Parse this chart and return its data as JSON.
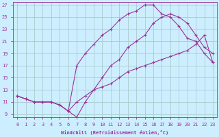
{
  "xlabel": "Windchill (Refroidissement éolien,°C)",
  "bg_color": "#cceeff",
  "grid_color": "#aacccc",
  "line_color": "#993399",
  "xlim": [
    -0.5,
    23.5
  ],
  "ylim": [
    8.5,
    27.5
  ],
  "xticks": [
    0,
    1,
    2,
    3,
    4,
    5,
    6,
    7,
    8,
    9,
    10,
    11,
    12,
    13,
    14,
    15,
    16,
    17,
    18,
    19,
    20,
    21,
    22,
    23
  ],
  "yticks": [
    9,
    11,
    13,
    15,
    17,
    19,
    21,
    23,
    25,
    27
  ],
  "line1_x": [
    0,
    1,
    2,
    3,
    4,
    5,
    6,
    7,
    8,
    9,
    10,
    11,
    12,
    13,
    14,
    15,
    16,
    17,
    18,
    19,
    20,
    21,
    22,
    23
  ],
  "line1_y": [
    12,
    11.5,
    11,
    11,
    11,
    10.5,
    9.5,
    8.5,
    11,
    13,
    15,
    17,
    18,
    20,
    21,
    22,
    24,
    25,
    25.5,
    25,
    24,
    22,
    20,
    19
  ],
  "line2_x": [
    0,
    1,
    2,
    3,
    4,
    5,
    6,
    7,
    8,
    9,
    10,
    11,
    12,
    13,
    14,
    15,
    16,
    17,
    18,
    19,
    20,
    21,
    22,
    23
  ],
  "line2_y": [
    12,
    11.5,
    11,
    11,
    11,
    10.5,
    9.5,
    17,
    19,
    20.5,
    22,
    23,
    24.5,
    25.5,
    26,
    27,
    27,
    25.5,
    25,
    23.5,
    21.5,
    21,
    19,
    17.5
  ],
  "line3_x": [
    0,
    1,
    2,
    3,
    4,
    5,
    6,
    7,
    8,
    9,
    10,
    11,
    12,
    13,
    14,
    15,
    16,
    17,
    18,
    19,
    20,
    21,
    22,
    23
  ],
  "line3_y": [
    12,
    11.5,
    11,
    11,
    11,
    10.5,
    9.5,
    11,
    12,
    13,
    13.5,
    14,
    15,
    16,
    16.5,
    17,
    17.5,
    18,
    18.5,
    19,
    19.5,
    20.5,
    22,
    17.5
  ]
}
